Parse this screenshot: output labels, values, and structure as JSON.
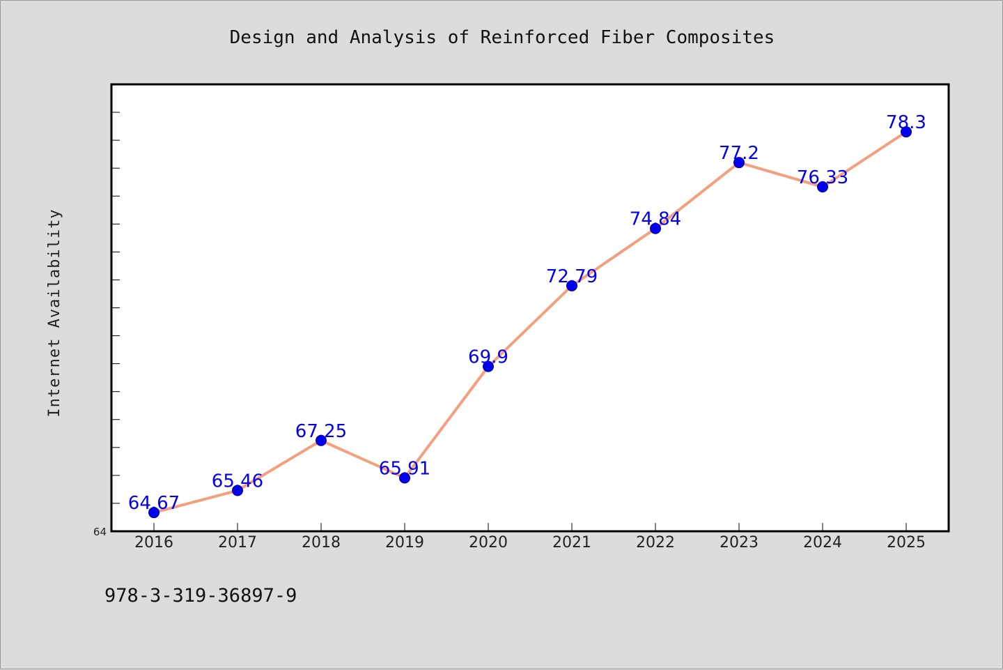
{
  "chart_data": {
    "type": "line",
    "title": "Design and Analysis of Reinforced Fiber Composites",
    "xlabel": "",
    "ylabel": "Internet Availability",
    "categories": [
      "2016",
      "2017",
      "2018",
      "2019",
      "2020",
      "2021",
      "2022",
      "2023",
      "2024",
      "2025"
    ],
    "series": [
      {
        "values": [
          64.67,
          65.46,
          67.25,
          65.91,
          69.9,
          72.79,
          74.84,
          77.2,
          76.33,
          78.3
        ],
        "line_color": "#f4a07e",
        "marker_color": "#0000ee"
      }
    ],
    "data_label_color": "#0000ee",
    "ylim": [
      64,
      80
    ],
    "yticks": [
      64
    ],
    "yticks_minor_step": 1,
    "grid": false,
    "legend": "none"
  },
  "footer": {
    "isbn": "978-3-319-36897-9"
  },
  "colors": {
    "background": "#dcdcdc",
    "plot_area": "#ffffff",
    "axis": "#000000"
  }
}
